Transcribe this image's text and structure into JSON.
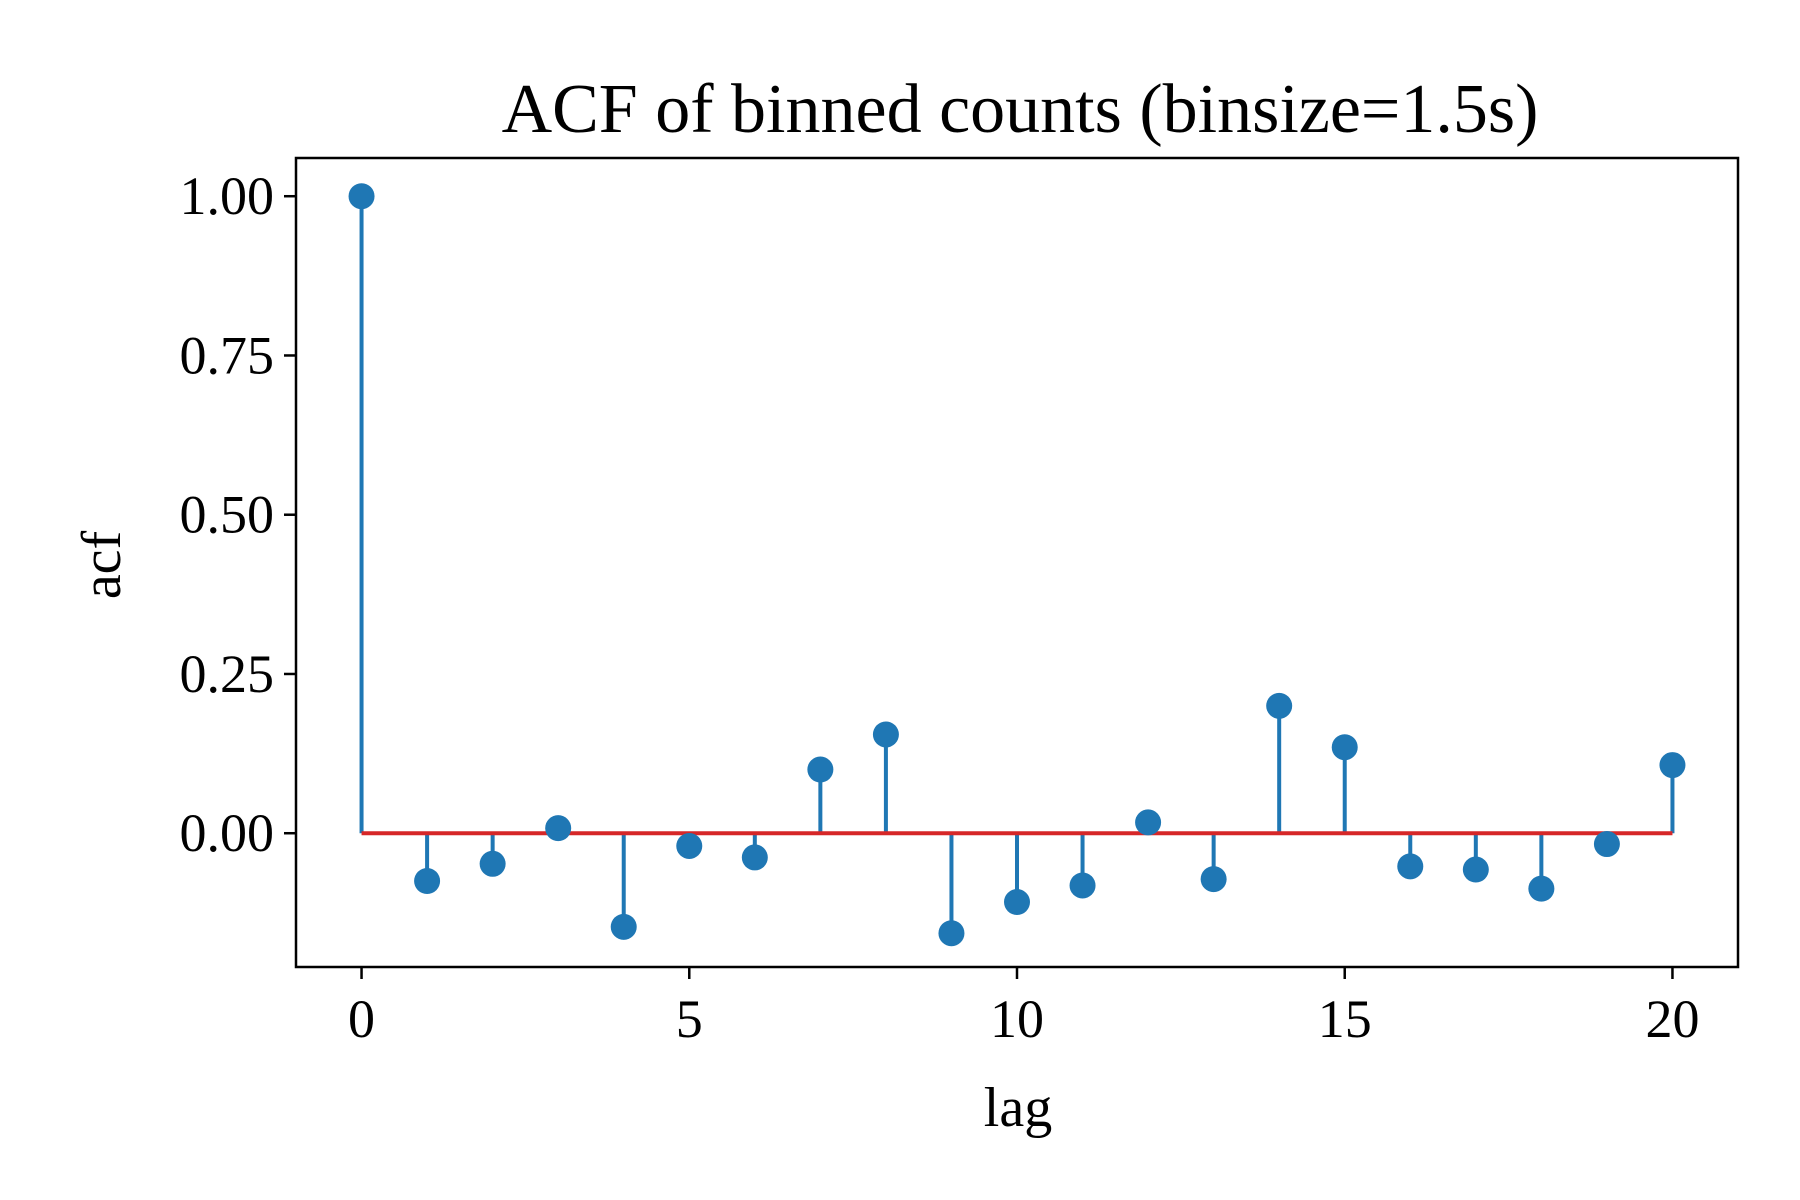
{
  "chart_data": {
    "type": "stem",
    "title": "ACF of binned counts (binsize=1.5s)",
    "xlabel": "lag",
    "ylabel": "acf",
    "x": [
      0,
      1,
      2,
      3,
      4,
      5,
      6,
      7,
      8,
      9,
      10,
      11,
      12,
      13,
      14,
      15,
      16,
      17,
      18,
      19,
      20
    ],
    "y": [
      1.0,
      -0.075,
      -0.048,
      0.008,
      -0.147,
      -0.02,
      -0.038,
      0.1,
      0.155,
      -0.157,
      -0.108,
      -0.082,
      0.017,
      -0.072,
      0.2,
      0.135,
      -0.052,
      -0.057,
      -0.087,
      -0.017,
      0.107
    ],
    "xlim": [
      -1,
      21
    ],
    "ylim": [
      -0.21,
      1.06
    ],
    "xticks": [
      0,
      5,
      10,
      15,
      20
    ],
    "xtick_labels": [
      "0",
      "5",
      "10",
      "15",
      "20"
    ],
    "yticks": [
      0.0,
      0.25,
      0.5,
      0.75,
      1.0
    ],
    "ytick_labels": [
      "0.00",
      "0.25",
      "0.50",
      "0.75",
      "1.00"
    ],
    "baseline": 0,
    "grid": false,
    "colors": {
      "stem": "#1f77b4",
      "marker": "#1f77b4",
      "baseline": "#d62728",
      "axes": "#000000"
    }
  }
}
